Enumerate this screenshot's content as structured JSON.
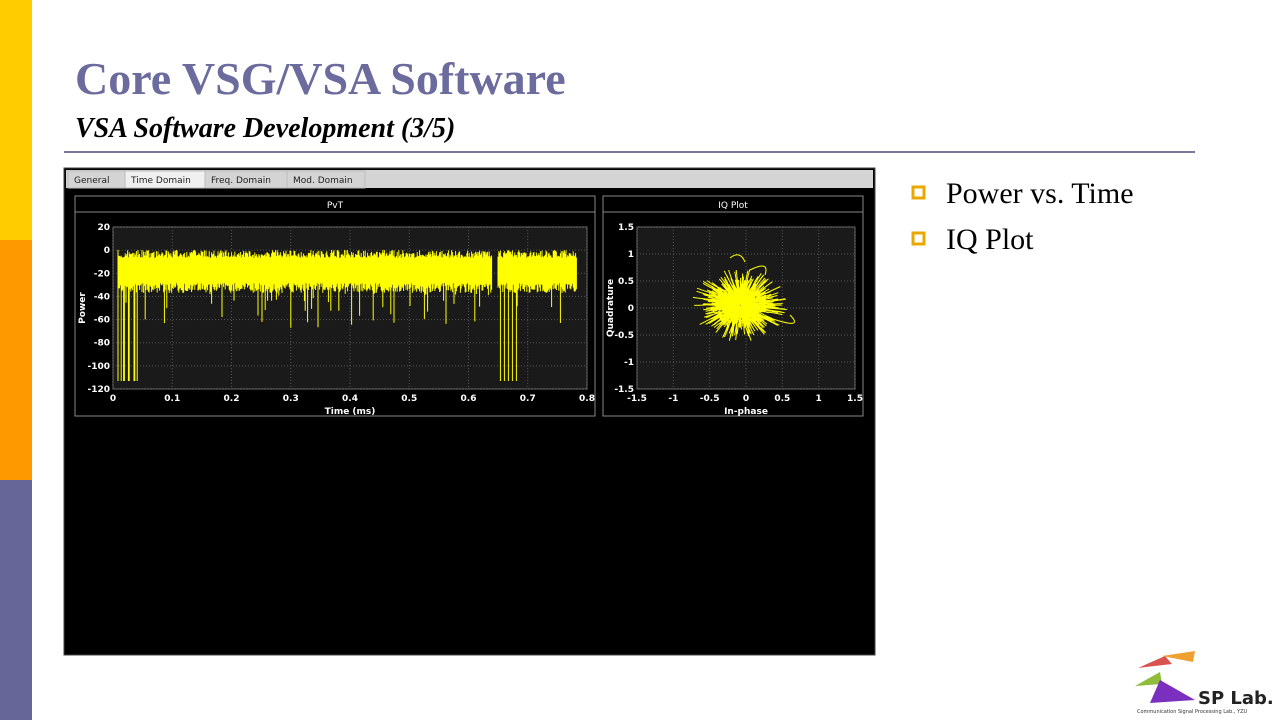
{
  "slide": {
    "title": "Core VSG/VSA Software",
    "subtitle": "VSA Software Development (3/5)",
    "tabs": [
      "General",
      "Time Domain",
      "Freq. Domain",
      "Mod. Domain"
    ],
    "pvt": {
      "title": "PvT",
      "xlabel": "Time (ms)",
      "ylabel": "Power",
      "xlim": [
        0,
        0.8
      ],
      "xticks": [
        0,
        0.1,
        0.2,
        0.3,
        0.4,
        0.5,
        0.6,
        0.7,
        0.8
      ],
      "ylim": [
        -120,
        20
      ],
      "yticks": [
        20,
        0,
        -20,
        -40,
        -60,
        -80,
        -100,
        -120
      ]
    },
    "iq": {
      "title": "IQ Plot",
      "xlabel": "In-phase",
      "ylabel": "Quadrature",
      "xlim": [
        -1.5,
        1.5
      ],
      "xticks": [
        -1.5,
        -1,
        -0.5,
        0,
        0.5,
        1,
        1.5
      ],
      "ylim": [
        -1.5,
        1.5
      ],
      "yticks": [
        1.5,
        1,
        0.5,
        0,
        -0.5,
        -1,
        -1.5
      ]
    },
    "bullets": [
      "Power vs. Time",
      "IQ Plot"
    ],
    "logo": {
      "name": "SP Lab.",
      "caption": "Communication Signal Processing Lab., YZU"
    }
  }
}
